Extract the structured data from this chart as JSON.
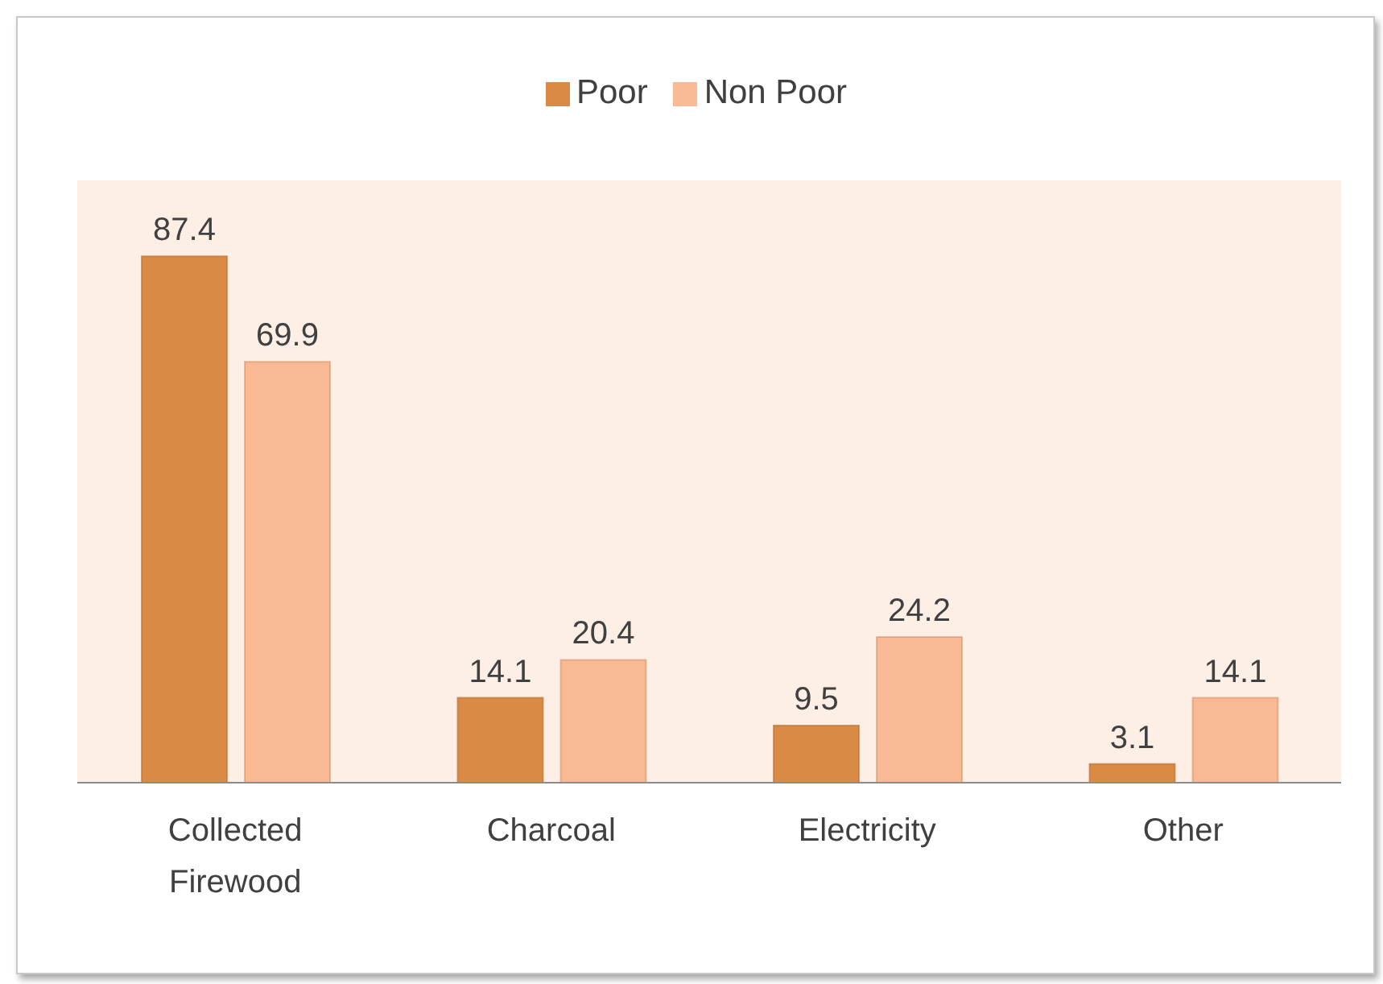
{
  "chart_data": {
    "type": "bar",
    "categories": [
      "Collected Firewood",
      "Charcoal",
      "Electricity",
      "Other"
    ],
    "series": [
      {
        "name": "Poor",
        "color": "#da8a45",
        "values": [
          87.4,
          14.1,
          9.5,
          3.1
        ]
      },
      {
        "name": "Non Poor",
        "color": "#f9b995",
        "values": [
          69.9,
          20.4,
          24.2,
          14.1
        ]
      }
    ],
    "ylim": [
      0,
      100
    ],
    "tick_labels": "x",
    "data_labels": true,
    "legend": "top"
  }
}
